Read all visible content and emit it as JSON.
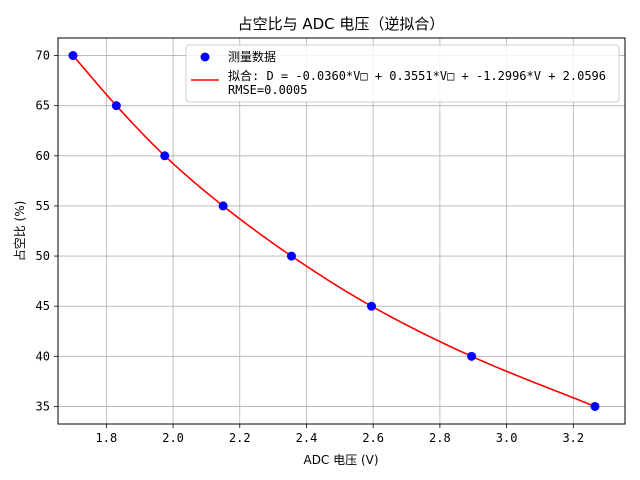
{
  "chart_data": {
    "type": "scatter",
    "title": "占空比与 ADC 电压（逆拟合）",
    "xlabel": "ADC 电压 (V)",
    "ylabel": "占空比 (%)",
    "xlim": [
      1.655,
      3.355
    ],
    "ylim": [
      33.25,
      71.75
    ],
    "xticks": [
      1.8,
      2.0,
      2.2,
      2.4,
      2.6,
      2.8,
      3.0,
      3.2
    ],
    "xtick_labels": [
      "1.8",
      "2.0",
      "2.2",
      "2.4",
      "2.6",
      "2.8",
      "3.0",
      "3.2"
    ],
    "yticks": [
      35,
      40,
      45,
      50,
      55,
      60,
      65,
      70
    ],
    "ytick_labels": [
      "35",
      "40",
      "45",
      "50",
      "55",
      "60",
      "65",
      "70"
    ],
    "grid": true,
    "legend_position": "top-right",
    "series": [
      {
        "name": "测量数据",
        "kind": "scatter",
        "color": "#0000ff",
        "x": [
          1.7,
          1.83,
          1.975,
          2.15,
          2.355,
          2.595,
          2.895,
          3.265
        ],
        "y": [
          70,
          65,
          60,
          55,
          50,
          45,
          40,
          35
        ]
      },
      {
        "name": "拟合: D = -0.0360*V□ + 0.3551*V□ + -1.2996*V + 2.0596",
        "name_line2": "RMSE=0.0005",
        "kind": "line",
        "color": "#ff0000",
        "x": [
          1.7,
          1.83,
          1.975,
          2.15,
          2.355,
          2.595,
          2.895,
          3.265
        ],
        "y": [
          70,
          65,
          60,
          55,
          50,
          45,
          40,
          35
        ]
      }
    ]
  }
}
